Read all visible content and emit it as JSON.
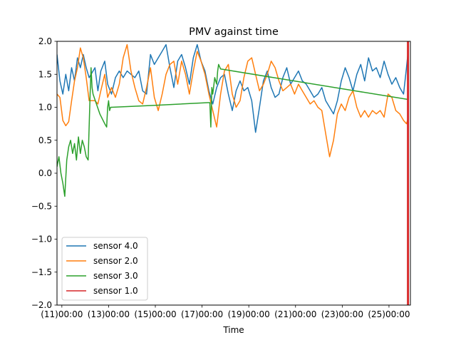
{
  "chart_data": {
    "type": "line",
    "title": "PMV against  time",
    "xlabel": "Time",
    "ylabel": "",
    "x_is_datetime": true,
    "xlim": [
      "2021-01-10T19:00",
      "2021-01-25T22:00"
    ],
    "ylim": [
      -2.0,
      2.0
    ],
    "grid": false,
    "legend_position": "lower-left",
    "x_ticks": [
      {
        "t": "2021-01-11T00:00",
        "label": "(11)00:00"
      },
      {
        "t": "2021-01-13T00:00",
        "label": "(13)00:00"
      },
      {
        "t": "2021-01-15T00:00",
        "label": "(15)00:00"
      },
      {
        "t": "2021-01-17T00:00",
        "label": "(17)00:00"
      },
      {
        "t": "2021-01-19T00:00",
        "label": "(19)00:00"
      },
      {
        "t": "2021-01-21T00:00",
        "label": "(21)00:00"
      },
      {
        "t": "2021-01-23T00:00",
        "label": "(23)00:00"
      },
      {
        "t": "2021-01-25T00:00",
        "label": "(25)00:00"
      }
    ],
    "y_ticks": [
      {
        "v": 2.0,
        "label": "2.0"
      },
      {
        "v": 1.5,
        "label": "1.5"
      },
      {
        "v": 1.0,
        "label": "1.0"
      },
      {
        "v": 0.5,
        "label": "0.5"
      },
      {
        "v": 0.0,
        "label": "0.0"
      },
      {
        "v": -0.5,
        "label": "−0.5"
      },
      {
        "v": -1.0,
        "label": "−1.0"
      },
      {
        "v": -1.5,
        "label": "−1.5"
      },
      {
        "v": -2.0,
        "label": "−2.0"
      }
    ],
    "series": [
      {
        "name": "sensor 4.0",
        "color": "#1f77b4",
        "points": [
          [
            "2021-01-10T19:00",
            1.8
          ],
          [
            "2021-01-10T22:00",
            1.4
          ],
          [
            "2021-01-11T01:00",
            1.2
          ],
          [
            "2021-01-11T04:00",
            1.5
          ],
          [
            "2021-01-11T07:00",
            1.25
          ],
          [
            "2021-01-11T10:00",
            1.6
          ],
          [
            "2021-01-11T13:00",
            1.4
          ],
          [
            "2021-01-11T16:00",
            1.75
          ],
          [
            "2021-01-11T19:00",
            1.6
          ],
          [
            "2021-01-11T22:00",
            1.8
          ],
          [
            "2021-01-12T01:00",
            1.6
          ],
          [
            "2021-01-12T04:00",
            1.45
          ],
          [
            "2021-01-12T10:00",
            1.6
          ],
          [
            "2021-01-12T13:00",
            1.25
          ],
          [
            "2021-01-12T16:00",
            1.55
          ],
          [
            "2021-01-12T20:00",
            1.7
          ],
          [
            "2021-01-12T23:00",
            1.35
          ],
          [
            "2021-01-13T03:00",
            1.2
          ],
          [
            "2021-01-13T07:00",
            1.45
          ],
          [
            "2021-01-13T11:00",
            1.55
          ],
          [
            "2021-01-13T15:00",
            1.45
          ],
          [
            "2021-01-13T19:00",
            1.55
          ],
          [
            "2021-01-13T23:00",
            1.5
          ],
          [
            "2021-01-14T03:00",
            1.45
          ],
          [
            "2021-01-14T07:00",
            1.55
          ],
          [
            "2021-01-14T11:00",
            1.25
          ],
          [
            "2021-01-14T15:00",
            1.2
          ],
          [
            "2021-01-14T19:00",
            1.8
          ],
          [
            "2021-01-14T23:00",
            1.65
          ],
          [
            "2021-01-15T03:00",
            1.75
          ],
          [
            "2021-01-15T07:00",
            1.85
          ],
          [
            "2021-01-15T11:00",
            1.95
          ],
          [
            "2021-01-15T15:00",
            1.6
          ],
          [
            "2021-01-15T19:00",
            1.3
          ],
          [
            "2021-01-15T23:00",
            1.7
          ],
          [
            "2021-01-16T03:00",
            1.8
          ],
          [
            "2021-01-16T07:00",
            1.6
          ],
          [
            "2021-01-16T11:00",
            1.35
          ],
          [
            "2021-01-16T15:00",
            1.75
          ],
          [
            "2021-01-16T19:00",
            1.95
          ],
          [
            "2021-01-16T23:00",
            1.7
          ],
          [
            "2021-01-17T03:00",
            1.55
          ],
          [
            "2021-01-17T07:00",
            1.25
          ],
          [
            "2021-01-17T11:00",
            1.05
          ],
          [
            "2021-01-17T15:00",
            1.3
          ],
          [
            "2021-01-17T19:00",
            1.45
          ],
          [
            "2021-01-17T23:00",
            1.5
          ],
          [
            "2021-01-18T03:00",
            1.2
          ],
          [
            "2021-01-18T07:00",
            0.95
          ],
          [
            "2021-01-18T11:00",
            1.25
          ],
          [
            "2021-01-18T15:00",
            1.4
          ],
          [
            "2021-01-18T19:00",
            1.25
          ],
          [
            "2021-01-18T23:00",
            1.3
          ],
          [
            "2021-01-19T03:00",
            1.1
          ],
          [
            "2021-01-19T07:00",
            0.62
          ],
          [
            "2021-01-19T11:00",
            1.0
          ],
          [
            "2021-01-19T15:00",
            1.4
          ],
          [
            "2021-01-19T19:00",
            1.55
          ],
          [
            "2021-01-19T23:00",
            1.3
          ],
          [
            "2021-01-20T03:00",
            1.15
          ],
          [
            "2021-01-20T07:00",
            1.2
          ],
          [
            "2021-01-20T11:00",
            1.45
          ],
          [
            "2021-01-20T15:00",
            1.6
          ],
          [
            "2021-01-20T19:00",
            1.35
          ],
          [
            "2021-01-20T23:00",
            1.45
          ],
          [
            "2021-01-21T03:00",
            1.55
          ],
          [
            "2021-01-21T07:00",
            1.4
          ],
          [
            "2021-01-21T11:00",
            1.35
          ],
          [
            "2021-01-21T15:00",
            1.25
          ],
          [
            "2021-01-21T19:00",
            1.15
          ],
          [
            "2021-01-21T23:00",
            1.2
          ],
          [
            "2021-01-22T03:00",
            1.3
          ],
          [
            "2021-01-22T07:00",
            1.1
          ],
          [
            "2021-01-22T11:00",
            1.0
          ],
          [
            "2021-01-22T15:00",
            0.9
          ],
          [
            "2021-01-22T19:00",
            1.1
          ],
          [
            "2021-01-22T23:00",
            1.4
          ],
          [
            "2021-01-23T03:00",
            1.6
          ],
          [
            "2021-01-23T07:00",
            1.45
          ],
          [
            "2021-01-23T11:00",
            1.25
          ],
          [
            "2021-01-23T15:00",
            1.5
          ],
          [
            "2021-01-23T19:00",
            1.65
          ],
          [
            "2021-01-23T23:00",
            1.4
          ],
          [
            "2021-01-24T03:00",
            1.75
          ],
          [
            "2021-01-24T07:00",
            1.55
          ],
          [
            "2021-01-24T11:00",
            1.6
          ],
          [
            "2021-01-24T15:00",
            1.45
          ],
          [
            "2021-01-24T19:00",
            1.7
          ],
          [
            "2021-01-24T23:00",
            1.5
          ],
          [
            "2021-01-25T03:00",
            1.35
          ],
          [
            "2021-01-25T07:00",
            1.45
          ],
          [
            "2021-01-25T11:00",
            1.3
          ],
          [
            "2021-01-25T15:00",
            1.2
          ],
          [
            "2021-01-25T18:00",
            1.6
          ],
          [
            "2021-01-25T20:00",
            1.9
          ]
        ]
      },
      {
        "name": "sensor 2.0",
        "color": "#ff7f0e",
        "points": [
          [
            "2021-01-10T19:00",
            1.2
          ],
          [
            "2021-01-10T22:00",
            1.15
          ],
          [
            "2021-01-11T01:00",
            0.8
          ],
          [
            "2021-01-11T04:00",
            0.72
          ],
          [
            "2021-01-11T07:00",
            0.78
          ],
          [
            "2021-01-11T10:00",
            1.1
          ],
          [
            "2021-01-11T13:00",
            1.4
          ],
          [
            "2021-01-11T16:00",
            1.6
          ],
          [
            "2021-01-11T19:00",
            1.9
          ],
          [
            "2021-01-11T22:00",
            1.75
          ],
          [
            "2021-01-12T01:00",
            1.45
          ],
          [
            "2021-01-12T04:00",
            1.1
          ],
          [
            "2021-01-12T10:00",
            1.1
          ],
          [
            "2021-01-12T13:00",
            1.05
          ],
          [
            "2021-01-12T16:00",
            1.25
          ],
          [
            "2021-01-12T20:00",
            1.5
          ],
          [
            "2021-01-12T23:00",
            1.15
          ],
          [
            "2021-01-13T03:00",
            1.3
          ],
          [
            "2021-01-13T07:00",
            1.15
          ],
          [
            "2021-01-13T11:00",
            1.35
          ],
          [
            "2021-01-13T15:00",
            1.75
          ],
          [
            "2021-01-13T19:00",
            1.95
          ],
          [
            "2021-01-13T23:00",
            1.55
          ],
          [
            "2021-01-14T03:00",
            1.3
          ],
          [
            "2021-01-14T07:00",
            1.1
          ],
          [
            "2021-01-14T11:00",
            1.05
          ],
          [
            "2021-01-14T15:00",
            1.3
          ],
          [
            "2021-01-14T19:00",
            1.6
          ],
          [
            "2021-01-14T23:00",
            1.15
          ],
          [
            "2021-01-15T03:00",
            0.95
          ],
          [
            "2021-01-15T07:00",
            1.2
          ],
          [
            "2021-01-15T11:00",
            1.5
          ],
          [
            "2021-01-15T15:00",
            1.65
          ],
          [
            "2021-01-15T19:00",
            1.7
          ],
          [
            "2021-01-15T23:00",
            1.35
          ],
          [
            "2021-01-16T03:00",
            1.7
          ],
          [
            "2021-01-16T07:00",
            1.5
          ],
          [
            "2021-01-16T11:00",
            1.2
          ],
          [
            "2021-01-16T15:00",
            1.55
          ],
          [
            "2021-01-16T19:00",
            1.85
          ],
          [
            "2021-01-16T23:00",
            1.7
          ],
          [
            "2021-01-17T03:00",
            1.5
          ],
          [
            "2021-01-17T07:00",
            1.2
          ],
          [
            "2021-01-17T11:00",
            0.95
          ],
          [
            "2021-01-17T15:00",
            0.7
          ],
          [
            "2021-01-17T19:00",
            1.2
          ],
          [
            "2021-01-17T23:00",
            1.55
          ],
          [
            "2021-01-18T03:00",
            1.65
          ],
          [
            "2021-01-18T07:00",
            1.2
          ],
          [
            "2021-01-18T11:00",
            1.0
          ],
          [
            "2021-01-18T15:00",
            1.1
          ],
          [
            "2021-01-18T19:00",
            1.45
          ],
          [
            "2021-01-18T23:00",
            1.7
          ],
          [
            "2021-01-19T03:00",
            1.75
          ],
          [
            "2021-01-19T07:00",
            1.5
          ],
          [
            "2021-01-19T11:00",
            1.25
          ],
          [
            "2021-01-19T15:00",
            1.35
          ],
          [
            "2021-01-19T19:00",
            1.5
          ],
          [
            "2021-01-19T23:00",
            1.7
          ],
          [
            "2021-01-20T03:00",
            1.6
          ],
          [
            "2021-01-20T07:00",
            1.4
          ],
          [
            "2021-01-20T11:00",
            1.25
          ],
          [
            "2021-01-20T15:00",
            1.3
          ],
          [
            "2021-01-20T19:00",
            1.35
          ],
          [
            "2021-01-20T23:00",
            1.2
          ],
          [
            "2021-01-21T03:00",
            1.35
          ],
          [
            "2021-01-21T07:00",
            1.25
          ],
          [
            "2021-01-21T11:00",
            1.15
          ],
          [
            "2021-01-21T15:00",
            1.05
          ],
          [
            "2021-01-21T19:00",
            1.1
          ],
          [
            "2021-01-21T23:00",
            1.0
          ],
          [
            "2021-01-22T03:00",
            0.95
          ],
          [
            "2021-01-22T07:00",
            0.6
          ],
          [
            "2021-01-22T11:00",
            0.25
          ],
          [
            "2021-01-22T15:00",
            0.5
          ],
          [
            "2021-01-22T19:00",
            0.9
          ],
          [
            "2021-01-22T23:00",
            1.05
          ],
          [
            "2021-01-23T03:00",
            0.95
          ],
          [
            "2021-01-23T07:00",
            1.15
          ],
          [
            "2021-01-23T11:00",
            1.25
          ],
          [
            "2021-01-23T15:00",
            1.0
          ],
          [
            "2021-01-23T19:00",
            0.85
          ],
          [
            "2021-01-23T23:00",
            0.95
          ],
          [
            "2021-01-24T03:00",
            0.85
          ],
          [
            "2021-01-24T07:00",
            0.95
          ],
          [
            "2021-01-24T11:00",
            0.9
          ],
          [
            "2021-01-24T15:00",
            0.95
          ],
          [
            "2021-01-24T19:00",
            0.85
          ],
          [
            "2021-01-24T23:00",
            1.2
          ],
          [
            "2021-01-25T03:00",
            1.15
          ],
          [
            "2021-01-25T07:00",
            0.95
          ],
          [
            "2021-01-25T11:00",
            0.9
          ],
          [
            "2021-01-25T15:00",
            0.8
          ],
          [
            "2021-01-25T18:00",
            0.75
          ],
          [
            "2021-01-25T20:00",
            0.85
          ]
        ]
      },
      {
        "name": "sensor 3.0",
        "color": "#2ca02c",
        "points": [
          [
            "2021-01-10T19:00",
            0.1
          ],
          [
            "2021-01-10T21:00",
            0.25
          ],
          [
            "2021-01-10T23:00",
            0.0
          ],
          [
            "2021-01-11T01:00",
            -0.15
          ],
          [
            "2021-01-11T03:00",
            -0.35
          ],
          [
            "2021-01-11T05:00",
            0.2
          ],
          [
            "2021-01-11T07:00",
            0.4
          ],
          [
            "2021-01-11T09:00",
            0.5
          ],
          [
            "2021-01-11T11:00",
            0.3
          ],
          [
            "2021-01-11T13:00",
            0.45
          ],
          [
            "2021-01-11T15:00",
            0.2
          ],
          [
            "2021-01-11T17:00",
            0.55
          ],
          [
            "2021-01-11T19:00",
            0.3
          ],
          [
            "2021-01-11T21:00",
            0.5
          ],
          [
            "2021-01-11T23:00",
            0.4
          ],
          [
            "2021-01-12T01:00",
            0.25
          ],
          [
            "2021-01-12T03:00",
            0.2
          ],
          [
            "2021-01-12T05:00",
            1.2
          ],
          [
            "2021-01-12T06:00",
            1.6
          ],
          [
            "2021-01-12T07:00",
            1.3
          ],
          [
            "2021-01-12T08:00",
            1.2
          ],
          [
            "2021-01-12T15:00",
            0.9
          ],
          [
            "2021-01-12T20:00",
            0.75
          ],
          [
            "2021-01-12T22:00",
            0.7
          ],
          [
            "2021-01-12T23:00",
            1.0
          ],
          [
            "2021-01-13T00:00",
            1.1
          ],
          [
            "2021-01-13T01:00",
            0.95
          ],
          [
            "2021-01-13T02:00",
            1.0
          ],
          [
            "2021-01-13T03:00",
            1.0
          ],
          [
            "2021-01-15T00:00",
            1.03
          ],
          [
            "2021-01-17T06:00",
            1.07
          ],
          [
            "2021-01-17T08:00",
            1.07
          ],
          [
            "2021-01-17T09:00",
            0.7
          ],
          [
            "2021-01-17T10:00",
            1.3
          ],
          [
            "2021-01-17T11:00",
            1.2
          ],
          [
            "2021-01-17T13:00",
            1.45
          ],
          [
            "2021-01-17T15:00",
            1.35
          ],
          [
            "2021-01-17T16:00",
            1.55
          ],
          [
            "2021-01-17T17:00",
            1.65
          ],
          [
            "2021-01-17T19:00",
            1.58
          ],
          [
            "2021-01-25T19:00",
            1.12
          ]
        ]
      },
      {
        "name": "sensor 1.0",
        "color": "#d62728",
        "points": [
          [
            "2021-01-25T19:00",
            -2.0
          ],
          [
            "2021-01-25T19:00",
            2.0
          ],
          [
            "2021-01-25T20:00",
            2.0
          ],
          [
            "2021-01-25T20:00",
            -2.0
          ]
        ]
      }
    ]
  }
}
